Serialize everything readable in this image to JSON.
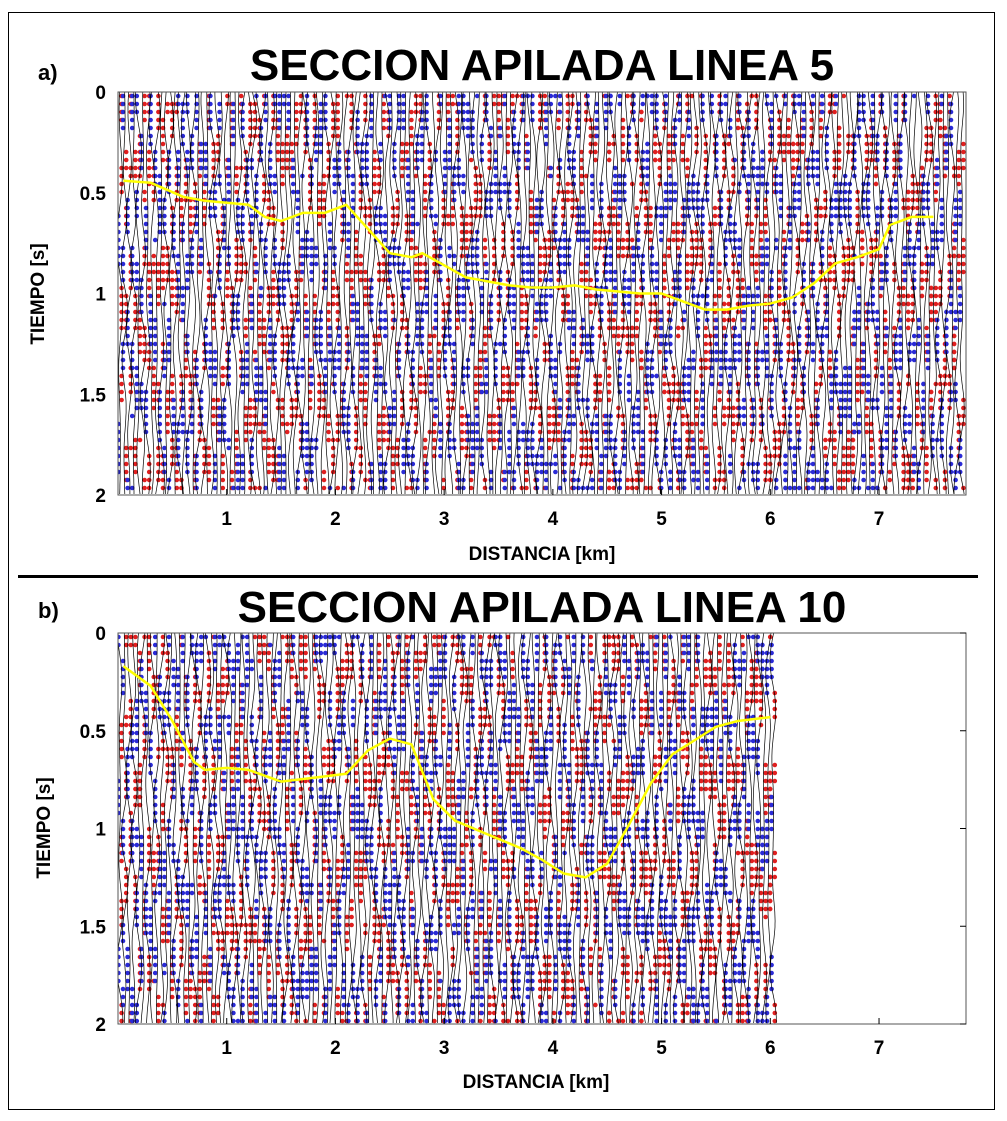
{
  "colors": {
    "positive": "#e01f1f",
    "negative": "#2a2ad6",
    "wiggle": "#000000",
    "horizon": "#ffff00",
    "background": "#ffffff"
  },
  "chart_data": [
    {
      "type": "seismic-section",
      "panel_label": "a)",
      "title": "SECCION APILADA LINEA 5",
      "xlabel": "DISTANCIA [km]",
      "ylabel": "TIEMPO [s]",
      "xlim": [
        0,
        7.8
      ],
      "ylim": [
        0,
        2
      ],
      "y_inverted": true,
      "data_xmax": 7.8,
      "x_ticks": [
        "1",
        "2",
        "3",
        "4",
        "5",
        "6",
        "7"
      ],
      "y_ticks": [
        "0",
        "0.5",
        "1",
        "1.5",
        "2"
      ],
      "right_ticks": false,
      "series": [
        {
          "x": [
            0.05,
            0.3,
            0.6,
            0.8,
            1.0,
            1.2,
            1.35,
            1.5,
            1.7,
            1.9,
            2.1,
            2.3,
            2.5,
            2.7,
            2.8,
            3.0,
            3.2,
            3.4,
            3.6,
            3.8,
            4.0,
            4.2,
            4.4,
            4.6,
            4.8,
            5.0,
            5.2,
            5.4,
            5.6,
            5.8,
            6.0,
            6.2,
            6.4,
            6.6,
            6.8,
            7.0,
            7.1,
            7.3,
            7.5
          ],
          "y": [
            0.44,
            0.45,
            0.52,
            0.54,
            0.55,
            0.56,
            0.62,
            0.64,
            0.6,
            0.6,
            0.56,
            0.68,
            0.8,
            0.82,
            0.8,
            0.86,
            0.92,
            0.94,
            0.96,
            0.97,
            0.97,
            0.96,
            0.98,
            0.99,
            1.0,
            1.0,
            1.04,
            1.08,
            1.08,
            1.06,
            1.05,
            1.02,
            0.95,
            0.85,
            0.82,
            0.78,
            0.66,
            0.62,
            0.62
          ]
        }
      ]
    },
    {
      "type": "seismic-section",
      "panel_label": "b)",
      "title": "SECCION APILADA LINEA 10",
      "xlabel": "DISTANCIA [km]",
      "ylabel": "TIEMPO [s]",
      "xlim": [
        0,
        7.8
      ],
      "ylim": [
        0,
        2
      ],
      "y_inverted": true,
      "data_xmax": 6.05,
      "x_ticks": [
        "1",
        "2",
        "3",
        "4",
        "5",
        "6",
        "7"
      ],
      "y_ticks": [
        "0",
        "0.5",
        "1",
        "1.5",
        "2"
      ],
      "right_ticks": true,
      "series": [
        {
          "x": [
            0.05,
            0.3,
            0.5,
            0.7,
            0.8,
            1.0,
            1.2,
            1.5,
            1.8,
            2.1,
            2.3,
            2.5,
            2.7,
            2.9,
            3.1,
            3.4,
            3.7,
            3.9,
            4.1,
            4.3,
            4.5,
            4.7,
            4.9,
            5.1,
            5.3,
            5.5,
            5.7,
            6.0
          ],
          "y": [
            0.17,
            0.27,
            0.45,
            0.66,
            0.7,
            0.69,
            0.7,
            0.76,
            0.74,
            0.72,
            0.6,
            0.54,
            0.57,
            0.85,
            0.96,
            1.03,
            1.1,
            1.16,
            1.23,
            1.25,
            1.18,
            0.98,
            0.77,
            0.62,
            0.55,
            0.48,
            0.45,
            0.43
          ]
        }
      ]
    }
  ]
}
